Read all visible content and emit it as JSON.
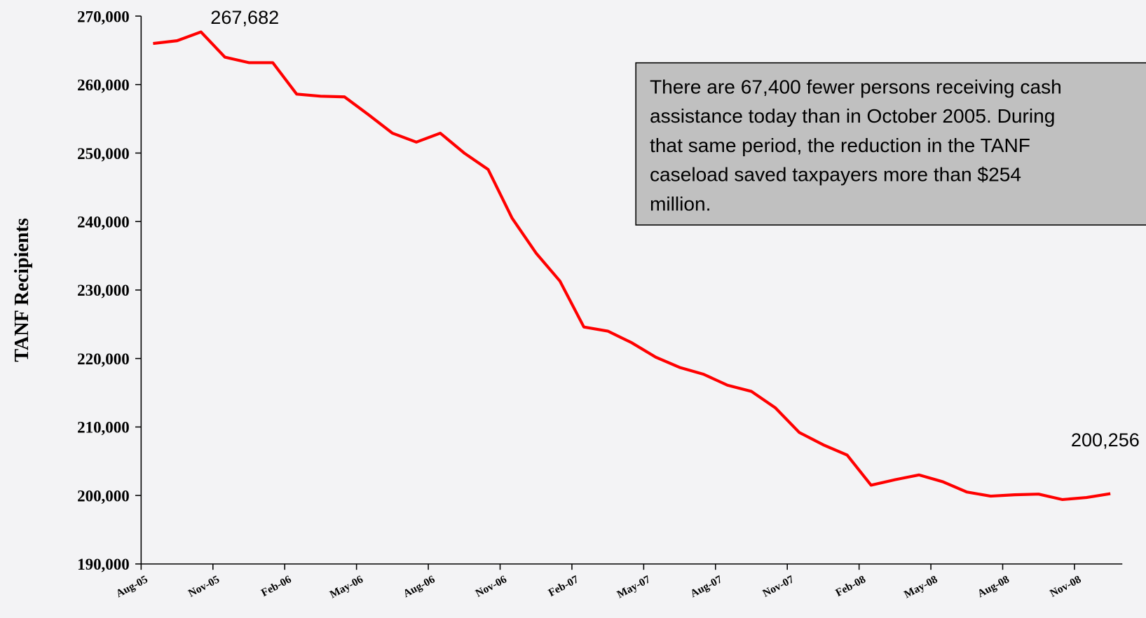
{
  "chart_data": {
    "type": "line",
    "y_label": "TANF Recipients",
    "categories": [
      "Aug-05",
      null,
      null,
      "Nov-05",
      null,
      null,
      "Feb-06",
      null,
      null,
      "May-06",
      null,
      null,
      "Aug-06",
      null,
      null,
      "Nov-06",
      null,
      null,
      "Feb-07",
      null,
      null,
      "May-07",
      null,
      null,
      "Aug-07",
      null,
      null,
      "Nov-07",
      null,
      null,
      "Feb-08",
      null,
      null,
      "May-08",
      null,
      null,
      "Aug-08",
      null,
      null,
      "Nov-08",
      null
    ],
    "series": [
      {
        "name": "TANF Recipients",
        "color": "#ff0000",
        "values": [
          266000,
          266400,
          267682,
          264000,
          263200,
          263200,
          258600,
          258300,
          258200,
          255600,
          252900,
          251600,
          252900,
          250000,
          247600,
          240500,
          235400,
          231300,
          224600,
          224000,
          222300,
          220200,
          218700,
          217700,
          216100,
          215200,
          212800,
          209200,
          207400,
          205900,
          201500,
          202300,
          203000,
          202000,
          200500,
          199900,
          200100,
          200200,
          199400,
          199700,
          200256
        ],
        "value_labels": [
          null,
          null,
          "267,682",
          null,
          null,
          null,
          null,
          null,
          null,
          null,
          null,
          null,
          null,
          null,
          null,
          null,
          null,
          null,
          null,
          null,
          null,
          null,
          null,
          null,
          null,
          null,
          null,
          null,
          null,
          null,
          null,
          null,
          null,
          null,
          null,
          null,
          null,
          null,
          null,
          null,
          "200,256"
        ]
      }
    ],
    "ylim": [
      190000,
      270000
    ],
    "yticks": [
      {
        "value": 190000,
        "label": "190,000"
      },
      {
        "value": 200000,
        "label": "200,000"
      },
      {
        "value": 210000,
        "label": "210,000"
      },
      {
        "value": 220000,
        "label": "220,000"
      },
      {
        "value": 230000,
        "label": "230,000"
      },
      {
        "value": 240000,
        "label": "240,000"
      },
      {
        "value": 250000,
        "label": "250,000"
      },
      {
        "value": 260000,
        "label": "260,000"
      },
      {
        "value": 270000,
        "label": "270,000"
      }
    ],
    "annotation": [
      "There are 67,400 fewer persons receiving cash",
      "assistance today than in October 2005.  During",
      "that same period, the reduction in the TANF",
      "caseload saved taxpayers more than $254",
      "million."
    ]
  }
}
